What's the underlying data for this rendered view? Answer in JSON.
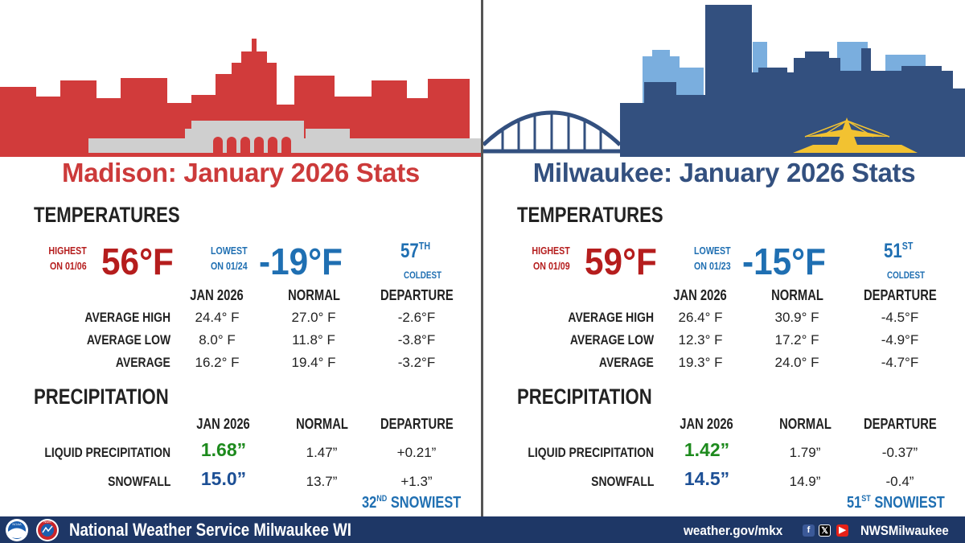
{
  "madison": {
    "title": "Madison: January 2026 Stats",
    "temperatures_heading": "TEMPERATURES",
    "highest_label_1": "HIGHEST",
    "highest_label_2": "ON 01/06",
    "highest_value": "56°F",
    "lowest_label_1": "LOWEST",
    "lowest_label_2": "ON 01/24",
    "lowest_value": "-19°F",
    "rank_num": "57",
    "rank_suffix": "TH",
    "rank_word": "COLDEST",
    "temp_columns": [
      "JAN 2026",
      "NORMAL",
      "DEPARTURE"
    ],
    "temp_rows": [
      {
        "label": "AVERAGE HIGH",
        "value": "24.4° F",
        "normal": "27.0° F",
        "departure": "-2.6°F"
      },
      {
        "label": "AVERAGE LOW",
        "value": "8.0° F",
        "normal": "11.8° F",
        "departure": "-3.8°F"
      },
      {
        "label": "AVERAGE",
        "value": "16.2° F",
        "normal": "19.4° F",
        "departure": "-3.2°F"
      }
    ],
    "precipitation_heading": "PRECIPITATION",
    "precip_columns": [
      "JAN 2026",
      "NORMAL",
      "DEPARTURE"
    ],
    "precip_rows": [
      {
        "label": "LIQUID PRECIPITATION",
        "value": "1.68”",
        "normal": "1.47”",
        "departure": "+0.21”"
      },
      {
        "label": "SNOWFALL",
        "value": "15.0”",
        "normal": "13.7”",
        "departure": "+1.3”"
      }
    ],
    "snow_rank_num": "32",
    "snow_rank_suffix": "ND",
    "snow_rank_word": "SNOWIEST"
  },
  "milwaukee": {
    "title": "Milwaukee: January 2026 Stats",
    "temperatures_heading": "TEMPERATURES",
    "highest_label_1": "HIGHEST",
    "highest_label_2": "ON 01/09",
    "highest_value": "59°F",
    "lowest_label_1": "LOWEST",
    "lowest_label_2": "ON 01/23",
    "lowest_value": "-15°F",
    "rank_num": "51",
    "rank_suffix": "ST",
    "rank_word": "COLDEST",
    "temp_columns": [
      "JAN 2026",
      "NORMAL",
      "DEPARTURE"
    ],
    "temp_rows": [
      {
        "label": "AVERAGE HIGH",
        "value": "26.4° F",
        "normal": "30.9° F",
        "departure": "-4.5°F"
      },
      {
        "label": "AVERAGE LOW",
        "value": "12.3° F",
        "normal": "17.2° F",
        "departure": "-4.9°F"
      },
      {
        "label": "AVERAGE",
        "value": "19.3° F",
        "normal": "24.0° F",
        "departure": "-4.7°F"
      }
    ],
    "precipitation_heading": "PRECIPITATION",
    "precip_columns": [
      "JAN 2026",
      "NORMAL",
      "DEPARTURE"
    ],
    "precip_rows": [
      {
        "label": "LIQUID PRECIPITATION",
        "value": "1.42”",
        "normal": "1.79”",
        "departure": "-0.37”"
      },
      {
        "label": "SNOWFALL",
        "value": "14.5”",
        "normal": "14.9”",
        "departure": "-0.4”"
      }
    ],
    "snow_rank_num": "51",
    "snow_rank_suffix": "ST",
    "snow_rank_word": "SNOWIEST"
  },
  "footer": {
    "title": "National Weather Service Milwaukee WI",
    "url": "weather.gov/mkx",
    "handle": "NWSMilwaukee",
    "noaa_logo_text": "NOAA",
    "nws_logo_text": "NWS",
    "social_icons": [
      "facebook-icon",
      "x-icon",
      "youtube-icon"
    ]
  },
  "colors": {
    "madison": "#cc3a3a",
    "milwaukee": "#33507f",
    "footer": "#1e3766",
    "record_high": "#b51d1d",
    "record_low": "#1f6fb2",
    "precip_above": "#1d8a1d",
    "snow": "#1c4f95"
  }
}
